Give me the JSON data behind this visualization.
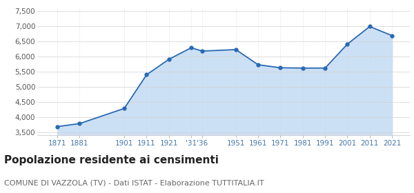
{
  "years": [
    1871,
    1881,
    1901,
    1911,
    1921,
    1931,
    1936,
    1951,
    1961,
    1971,
    1981,
    1991,
    2001,
    2011,
    2021
  ],
  "population": [
    3680,
    3780,
    4280,
    5390,
    5900,
    6280,
    6170,
    6220,
    5720,
    5620,
    5610,
    5610,
    6400,
    6980,
    6680
  ],
  "line_color": "#2869b4",
  "fill_color": "#cce0f5",
  "marker": "o",
  "marker_size": 3.5,
  "ylim": [
    3400,
    7600
  ],
  "yticks": [
    3500,
    4000,
    4500,
    5000,
    5500,
    6000,
    6500,
    7000,
    7500
  ],
  "xlim_min": 1862,
  "xlim_max": 2029,
  "title": "Popolazione residente ai censimenti",
  "subtitle": "COMUNE DI VAZZOLA (TV) - Dati ISTAT - Elaborazione TUTTITALIA.IT",
  "title_fontsize": 11,
  "subtitle_fontsize": 8,
  "tick_fontsize": 7.5,
  "ytick_fontsize": 7.5,
  "grid_color": "#d0d0d0",
  "bg_color": "#ffffff",
  "x_tick_positions": [
    1871,
    1881,
    1901,
    1911,
    1921,
    1931,
    1936,
    1951,
    1961,
    1971,
    1981,
    1991,
    2001,
    2011,
    2021
  ],
  "x_tick_labels": [
    "1871",
    "1881",
    "1901",
    "1911",
    "1921",
    "'31",
    "'36",
    "1951",
    "1961",
    "1971",
    "1981",
    "1991",
    "2001",
    "2011",
    "2021"
  ]
}
